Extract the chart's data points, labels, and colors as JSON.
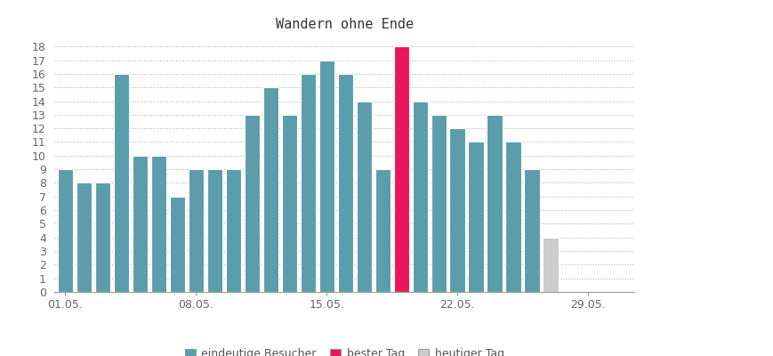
{
  "title": "Wandern ohne Ende",
  "values": [
    9,
    8,
    8,
    16,
    10,
    10,
    7,
    9,
    9,
    9,
    13,
    15,
    13,
    16,
    17,
    16,
    14,
    9,
    18,
    14,
    13,
    12,
    11,
    13,
    11,
    9,
    4
  ],
  "bar_colors": [
    "#5b9daa",
    "#5b9daa",
    "#5b9daa",
    "#5b9daa",
    "#5b9daa",
    "#5b9daa",
    "#5b9daa",
    "#5b9daa",
    "#5b9daa",
    "#5b9daa",
    "#5b9daa",
    "#5b9daa",
    "#5b9daa",
    "#5b9daa",
    "#5b9daa",
    "#5b9daa",
    "#5b9daa",
    "#5b9daa",
    "#e8175d",
    "#5b9daa",
    "#5b9daa",
    "#5b9daa",
    "#5b9daa",
    "#5b9daa",
    "#5b9daa",
    "#5b9daa",
    "#cccccc"
  ],
  "n_bars": 27,
  "x_tick_positions": [
    0,
    7,
    14,
    21,
    28
  ],
  "x_tick_labels": [
    "01.05.",
    "08.05.",
    "15.05.",
    "22.05.",
    "29.05."
  ],
  "y_ticks": [
    0,
    1,
    2,
    3,
    4,
    5,
    6,
    7,
    8,
    9,
    10,
    11,
    12,
    13,
    14,
    15,
    16,
    17,
    18
  ],
  "ylim": [
    0,
    18.8
  ],
  "xlim_min": -0.6,
  "xlim_max": 30.5,
  "legend_labels": [
    "eindeutige Besucher",
    "bester Tag",
    "heutiger Tag"
  ],
  "legend_colors": [
    "#5b9daa",
    "#e8175d",
    "#cccccc"
  ],
  "background_color": "#ffffff",
  "grid_color": "#aaaaaa",
  "title_fontsize": 11,
  "tick_fontsize": 9,
  "legend_fontsize": 9
}
